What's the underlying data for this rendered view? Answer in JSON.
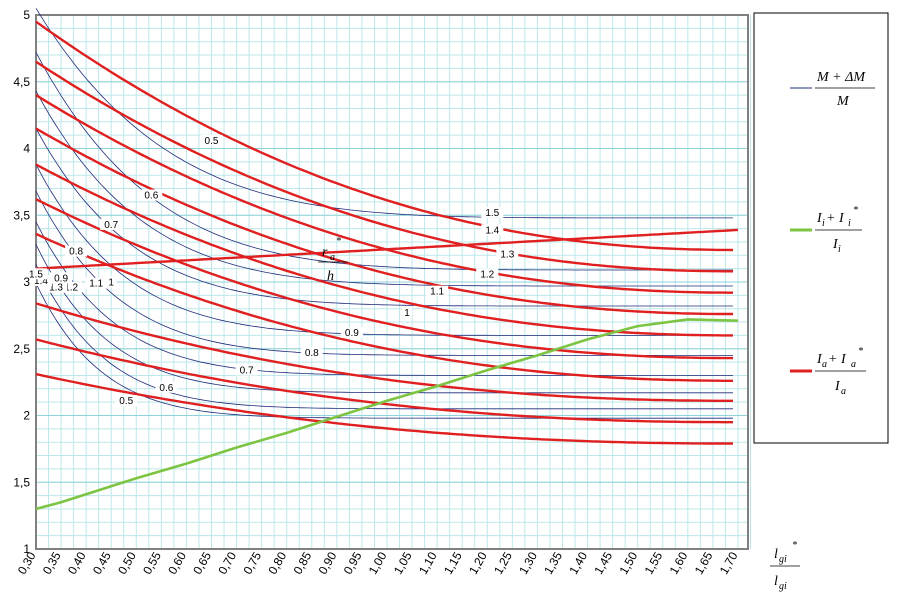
{
  "chart_data": {
    "type": "line",
    "grid": true,
    "xlim": [
      0.3,
      1.72
    ],
    "ylim": [
      1,
      5
    ],
    "x_ticks": [
      "0,30",
      "0,35",
      "0,40",
      "0,45",
      "0,50",
      "0,55",
      "0,60",
      "0,65",
      "0,70",
      "0,75",
      "0,80",
      "0,85",
      "0,90",
      "0,95",
      "1,00",
      "1,05",
      "1,10",
      "1,15",
      "1,20",
      "1,25",
      "1,30",
      "1,35",
      "1,40",
      "1,45",
      "1,50",
      "1,55",
      "1,60",
      "1,65",
      "1,70"
    ],
    "y_ticks": [
      "1",
      "1,5",
      "2",
      "2,5",
      "3",
      "3,5",
      "4",
      "4,5",
      "5"
    ],
    "xlabel": {
      "num": "l",
      "num_sub": "gi",
      "num_sup": "*",
      "den": "l",
      "den_sub": "gi"
    },
    "axis_annotation": {
      "num": "r",
      "num_sub": "a",
      "num_sup": "*",
      "den": "h"
    },
    "legend": [
      {
        "color": "#1f2b7a",
        "num": "M + ΔM",
        "den": "M"
      },
      {
        "color": "#7cc442",
        "num": "I",
        "num_sub": "i",
        "plus": " + I",
        "plus_sub": "i",
        "plus_sup": "*",
        "den": "I",
        "den_sub": "i"
      },
      {
        "color": "#e02020",
        "num": "I",
        "num_sub": "a",
        "plus": " + I",
        "plus_sub": "a",
        "plus_sup": "*",
        "den": "I",
        "den_sub": "a"
      }
    ],
    "green_series": {
      "x": [
        0.3,
        0.35,
        0.4,
        0.5,
        0.6,
        0.7,
        0.8,
        0.9,
        1.0,
        1.1,
        1.2,
        1.3,
        1.4,
        1.5,
        1.6,
        1.7
      ],
      "y": [
        1.3,
        1.35,
        1.41,
        1.53,
        1.64,
        1.76,
        1.87,
        1.99,
        2.11,
        2.22,
        2.34,
        2.45,
        2.57,
        2.67,
        2.72,
        2.71
      ]
    },
    "red_series": [
      {
        "label": "1.5",
        "y_start": 3.1,
        "y_end": 3.39,
        "label_at": [
          1.21,
          3.51
        ]
      },
      {
        "label": "1.4",
        "y_start": 4.95,
        "y_end": 3.24,
        "label_at": [
          1.21,
          3.38
        ]
      },
      {
        "label": "1.3",
        "y_start": 4.65,
        "y_end": 3.08,
        "label_at": [
          1.24,
          3.2
        ]
      },
      {
        "label": "1.2",
        "y_start": 4.4,
        "y_end": 2.92,
        "label_at": [
          1.2,
          3.05
        ]
      },
      {
        "label": "1.1",
        "y_start": 4.15,
        "y_end": 2.76,
        "label_at": [
          1.1,
          2.92
        ]
      },
      {
        "label": "1",
        "y_start": 3.88,
        "y_end": 2.6,
        "label_at": [
          1.04,
          2.76
        ]
      },
      {
        "label": "0.9",
        "y_start": 3.62,
        "y_end": 2.43,
        "label_at": [
          0.93,
          2.61
        ]
      },
      {
        "label": "0.8",
        "y_start": 3.36,
        "y_end": 2.26,
        "label_at": [
          0.85,
          2.46
        ]
      },
      {
        "label": "0.7",
        "y_start": 2.84,
        "y_end": 2.11,
        "label_at": [
          0.72,
          2.33
        ]
      },
      {
        "label": "0.6",
        "y_start": 2.57,
        "y_end": 1.95,
        "label_at": [
          0.56,
          2.2
        ]
      },
      {
        "label": "0.5",
        "y_start": 2.31,
        "y_end": 1.79,
        "label_at": [
          0.48,
          2.1
        ]
      }
    ],
    "red_left_labels": [
      {
        "label": "0.6",
        "at": [
          0.53,
          3.64
        ]
      },
      {
        "label": "0.7",
        "at": [
          0.45,
          3.42
        ]
      },
      {
        "label": "0.8",
        "at": [
          0.38,
          3.22
        ]
      },
      {
        "label": "0.9",
        "at": [
          0.35,
          3.02
        ]
      },
      {
        "label": "1.1",
        "at": [
          0.42,
          2.98
        ]
      },
      {
        "label": "1",
        "at": [
          0.45,
          2.99
        ]
      },
      {
        "label": "1.2",
        "at": [
          0.37,
          2.95
        ]
      },
      {
        "label": "1.3",
        "at": [
          0.34,
          2.95
        ]
      },
      {
        "label": "1.4",
        "at": [
          0.31,
          3.0
        ]
      },
      {
        "label": "1.5",
        "at": [
          0.3,
          3.05
        ]
      }
    ],
    "blue_series": [
      {
        "label": "0.5",
        "label_at": [
          0.65,
          4.05
        ],
        "y_start": 5.05,
        "y_end": 3.48
      },
      {
        "label": "",
        "y_start": 4.72,
        "y_end": 3.09
      },
      {
        "label": "",
        "y_start": 4.43,
        "y_end": 2.97
      },
      {
        "label": "",
        "y_start": 4.15,
        "y_end": 2.82
      },
      {
        "label": "",
        "y_start": 3.88,
        "y_end": 2.6
      },
      {
        "label": "",
        "y_start": 3.68,
        "y_end": 2.45
      },
      {
        "label": "",
        "y_start": 3.45,
        "y_end": 2.3
      },
      {
        "label": "",
        "y_start": 3.28,
        "y_end": 2.17
      },
      {
        "label": "",
        "y_start": 3.13,
        "y_end": 2.05
      },
      {
        "label": "",
        "y_start": 2.99,
        "y_end": 1.98
      }
    ]
  }
}
